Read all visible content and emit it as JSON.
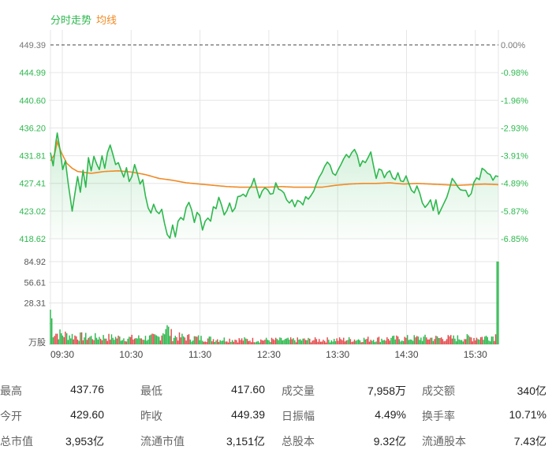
{
  "legend": {
    "trend_label": "分时走势",
    "avg_label": "均线",
    "trend_color": "#2eb84e",
    "avg_color": "#f08a24"
  },
  "colors": {
    "up": "#e24c4c",
    "down": "#2eb84e",
    "grid": "#e6e6e6",
    "price_axis": "#2eb84e"
  },
  "chart_data": {
    "type": "line",
    "price_ticks": [
      "449.39",
      "444.99",
      "440.60",
      "436.20",
      "431.81",
      "427.41",
      "423.02",
      "418.62"
    ],
    "pct_ticks": [
      "0.00%",
      "-0.98%",
      "-1.96%",
      "-2.93%",
      "-3.91%",
      "-4.89%",
      "-5.87%",
      "-6.85%"
    ],
    "price_range": [
      418.62,
      449.39
    ],
    "prev_close": 449.39,
    "time_ticks": [
      "09:30",
      "10:30",
      "11:30",
      "12:30",
      "13:30",
      "14:30",
      "15:30"
    ],
    "volume_ticks": [
      "84.92",
      "56.61",
      "28.31"
    ],
    "volume_unit": "万股",
    "volume_max": 84.92,
    "n_minutes": 330,
    "price_anchors": [
      [
        0,
        432.3
      ],
      [
        2,
        430.2
      ],
      [
        4,
        434.0
      ],
      [
        5,
        435.4
      ],
      [
        7,
        432.8
      ],
      [
        9,
        429.6
      ],
      [
        11,
        431.0
      ],
      [
        13,
        427.5
      ],
      [
        15,
        424.5
      ],
      [
        16,
        423.0
      ],
      [
        18,
        425.8
      ],
      [
        20,
        428.5
      ],
      [
        22,
        426.0
      ],
      [
        24,
        429.5
      ],
      [
        26,
        426.8
      ],
      [
        28,
        431.5
      ],
      [
        30,
        429.4
      ],
      [
        32,
        431.7
      ],
      [
        34,
        430.5
      ],
      [
        36,
        429.6
      ],
      [
        38,
        431.8
      ],
      [
        40,
        429.8
      ],
      [
        42,
        432.3
      ],
      [
        44,
        433.5
      ],
      [
        46,
        432.0
      ],
      [
        48,
        430.4
      ],
      [
        50,
        430.7
      ],
      [
        52,
        429.5
      ],
      [
        54,
        428.4
      ],
      [
        56,
        429.9
      ],
      [
        58,
        427.7
      ],
      [
        60,
        428.5
      ],
      [
        62,
        430.4
      ],
      [
        64,
        429.0
      ],
      [
        66,
        427.3
      ],
      [
        68,
        428.0
      ],
      [
        70,
        425.4
      ],
      [
        72,
        423.5
      ],
      [
        74,
        422.7
      ],
      [
        76,
        424.1
      ],
      [
        78,
        423.0
      ],
      [
        80,
        422.6
      ],
      [
        82,
        423.3
      ],
      [
        84,
        421.1
      ],
      [
        86,
        419.3
      ],
      [
        88,
        418.7
      ],
      [
        90,
        420.8
      ],
      [
        92,
        418.9
      ],
      [
        94,
        421.4
      ],
      [
        96,
        422.0
      ],
      [
        98,
        421.6
      ],
      [
        100,
        423.6
      ],
      [
        102,
        424.4
      ],
      [
        104,
        423.2
      ],
      [
        106,
        421.2
      ],
      [
        108,
        422.8
      ],
      [
        110,
        422.3
      ],
      [
        112,
        420.0
      ],
      [
        114,
        421.4
      ],
      [
        116,
        421.9
      ],
      [
        118,
        421.4
      ],
      [
        120,
        423.7
      ],
      [
        122,
        423.4
      ],
      [
        124,
        425.2
      ],
      [
        126,
        424.0
      ],
      [
        128,
        422.4
      ],
      [
        130,
        423.1
      ],
      [
        132,
        424.3
      ],
      [
        134,
        422.9
      ],
      [
        136,
        423.5
      ],
      [
        138,
        425.3
      ],
      [
        140,
        425.4
      ],
      [
        142,
        425.7
      ],
      [
        144,
        425.3
      ],
      [
        146,
        426.4
      ],
      [
        148,
        427.0
      ],
      [
        150,
        428.2
      ],
      [
        152,
        426.6
      ],
      [
        154,
        425.1
      ],
      [
        156,
        426.2
      ],
      [
        158,
        426.7
      ],
      [
        160,
        426.4
      ],
      [
        162,
        425.7
      ],
      [
        164,
        425.8
      ],
      [
        166,
        427.5
      ],
      [
        168,
        426.5
      ],
      [
        170,
        426.3
      ],
      [
        172,
        425.9
      ],
      [
        174,
        424.8
      ],
      [
        176,
        424.3
      ],
      [
        178,
        424.8
      ],
      [
        180,
        423.7
      ],
      [
        182,
        424.7
      ],
      [
        184,
        424.5
      ],
      [
        186,
        424.0
      ],
      [
        188,
        425.3
      ],
      [
        190,
        424.9
      ],
      [
        192,
        425.5
      ],
      [
        194,
        426.2
      ],
      [
        196,
        427.4
      ],
      [
        198,
        428.4
      ],
      [
        200,
        429.1
      ],
      [
        202,
        430.1
      ],
      [
        204,
        430.8
      ],
      [
        206,
        430.3
      ],
      [
        208,
        429.0
      ],
      [
        210,
        428.7
      ],
      [
        212,
        429.6
      ],
      [
        214,
        430.4
      ],
      [
        216,
        431.3
      ],
      [
        218,
        432.0
      ],
      [
        220,
        431.5
      ],
      [
        222,
        432.3
      ],
      [
        224,
        432.8
      ],
      [
        226,
        431.9
      ],
      [
        228,
        430.1
      ],
      [
        230,
        431.0
      ],
      [
        232,
        430.7
      ],
      [
        234,
        431.5
      ],
      [
        236,
        432.4
      ],
      [
        238,
        430.2
      ],
      [
        240,
        428.2
      ],
      [
        242,
        429.7
      ],
      [
        244,
        429.5
      ],
      [
        246,
        428.3
      ],
      [
        248,
        429.1
      ],
      [
        250,
        429.4
      ],
      [
        252,
        428.3
      ],
      [
        254,
        428.0
      ],
      [
        256,
        429.1
      ],
      [
        258,
        427.8
      ],
      [
        260,
        427.7
      ],
      [
        262,
        428.6
      ],
      [
        264,
        427.4
      ],
      [
        266,
        426.3
      ],
      [
        268,
        425.9
      ],
      [
        270,
        427.0
      ],
      [
        272,
        425.9
      ],
      [
        274,
        424.3
      ],
      [
        276,
        423.6
      ],
      [
        278,
        424.1
      ],
      [
        280,
        424.8
      ],
      [
        282,
        423.1
      ],
      [
        284,
        424.8
      ],
      [
        286,
        422.5
      ],
      [
        288,
        423.4
      ],
      [
        290,
        424.3
      ],
      [
        292,
        425.2
      ],
      [
        294,
        426.6
      ],
      [
        296,
        428.2
      ],
      [
        298,
        427.6
      ],
      [
        300,
        426.9
      ],
      [
        302,
        426.4
      ],
      [
        304,
        426.3
      ],
      [
        306,
        426.3
      ],
      [
        308,
        425.3
      ],
      [
        310,
        425.8
      ],
      [
        312,
        427.6
      ],
      [
        314,
        428.3
      ],
      [
        316,
        428.0
      ],
      [
        318,
        429.8
      ],
      [
        320,
        429.5
      ],
      [
        322,
        429.0
      ],
      [
        324,
        428.8
      ],
      [
        326,
        427.9
      ],
      [
        328,
        428.6
      ],
      [
        330,
        428.5
      ]
    ],
    "avg_anchors": [
      [
        0,
        431.0
      ],
      [
        3,
        432.0
      ],
      [
        5,
        434.0
      ],
      [
        8,
        432.3
      ],
      [
        12,
        430.6
      ],
      [
        16,
        429.8
      ],
      [
        20,
        429.3
      ],
      [
        30,
        429.0
      ],
      [
        40,
        429.3
      ],
      [
        50,
        429.4
      ],
      [
        60,
        429.2
      ],
      [
        70,
        428.8
      ],
      [
        80,
        428.2
      ],
      [
        90,
        427.9
      ],
      [
        100,
        427.5
      ],
      [
        110,
        427.3
      ],
      [
        120,
        427.1
      ],
      [
        130,
        426.9
      ],
      [
        140,
        426.8
      ],
      [
        150,
        426.8
      ],
      [
        160,
        426.8
      ],
      [
        170,
        426.9
      ],
      [
        180,
        426.8
      ],
      [
        190,
        426.8
      ],
      [
        200,
        426.8
      ],
      [
        210,
        427.1
      ],
      [
        220,
        427.3
      ],
      [
        230,
        427.4
      ],
      [
        240,
        427.4
      ],
      [
        250,
        427.5
      ],
      [
        260,
        427.3
      ],
      [
        270,
        427.4
      ],
      [
        280,
        427.3
      ],
      [
        290,
        427.2
      ],
      [
        300,
        427.1
      ],
      [
        310,
        427.2
      ],
      [
        320,
        427.3
      ],
      [
        330,
        427.2
      ]
    ],
    "volume_profile": [
      [
        0,
        40
      ],
      [
        2,
        15
      ],
      [
        5,
        12
      ],
      [
        10,
        11
      ],
      [
        20,
        9
      ],
      [
        30,
        8
      ],
      [
        40,
        8
      ],
      [
        60,
        7
      ],
      [
        80,
        8
      ],
      [
        85,
        20
      ],
      [
        90,
        9
      ],
      [
        120,
        6
      ],
      [
        150,
        5
      ],
      [
        200,
        5
      ],
      [
        240,
        6
      ],
      [
        270,
        7
      ],
      [
        300,
        7
      ],
      [
        320,
        8
      ],
      [
        325,
        9
      ],
      [
        328,
        10
      ],
      [
        329,
        85
      ]
    ]
  },
  "stats": [
    {
      "label": "最高",
      "value": "437.76"
    },
    {
      "label": "最低",
      "value": "417.60"
    },
    {
      "label": "成交量",
      "value": "7,958万"
    },
    {
      "label": "成交额",
      "value": "340亿"
    },
    {
      "label": "今开",
      "value": "429.60"
    },
    {
      "label": "昨收",
      "value": "449.39"
    },
    {
      "label": "日振幅",
      "value": "4.49%"
    },
    {
      "label": "换手率",
      "value": "10.71%"
    },
    {
      "label": "总市值",
      "value": "3,953亿"
    },
    {
      "label": "流通市值",
      "value": "3,151亿"
    },
    {
      "label": "总股本",
      "value": "9.32亿"
    },
    {
      "label": "流通股本",
      "value": "7.43亿"
    }
  ]
}
